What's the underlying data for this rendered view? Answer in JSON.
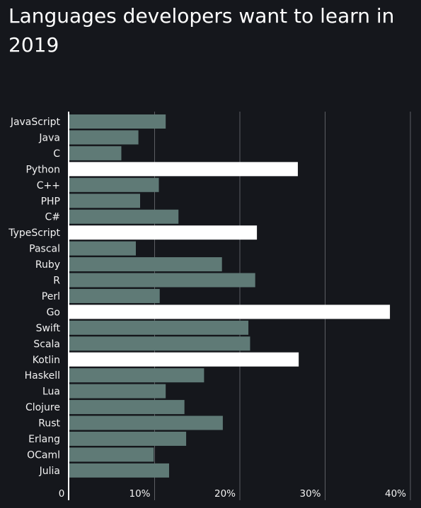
{
  "chart_data": {
    "type": "bar",
    "orientation": "horizontal",
    "title": "Languages developers want to learn in 2019",
    "categories": [
      "JavaScript",
      "Java",
      "C",
      "Python",
      "C++",
      "PHP",
      "C#",
      "TypeScript",
      "Pascal",
      "Ruby",
      "R",
      "Perl",
      "Go",
      "Swift",
      "Scala",
      "Kotlin",
      "Haskell",
      "Lua",
      "Clojure",
      "Rust",
      "Erlang",
      "OCaml",
      "Julia"
    ],
    "values": [
      11.3,
      8.1,
      6.1,
      26.8,
      10.5,
      8.3,
      12.8,
      22.0,
      7.8,
      17.9,
      21.8,
      10.6,
      37.6,
      21.0,
      21.2,
      26.9,
      15.8,
      11.3,
      13.5,
      18.0,
      13.7,
      9.9,
      11.7
    ],
    "highlighted": [
      "Python",
      "TypeScript",
      "Go",
      "Kotlin"
    ],
    "xlim": [
      0,
      40
    ],
    "xticks": [
      0,
      10,
      20,
      30,
      40
    ],
    "xtick_labels": [
      "0",
      "10%",
      "20%",
      "30%",
      "40%"
    ],
    "grid": true,
    "colors": {
      "background": "#15171c",
      "bar": "#5f7a76",
      "highlight": "#ffffff",
      "grid": "#5c5e63",
      "text": "#f2f2f2"
    }
  }
}
